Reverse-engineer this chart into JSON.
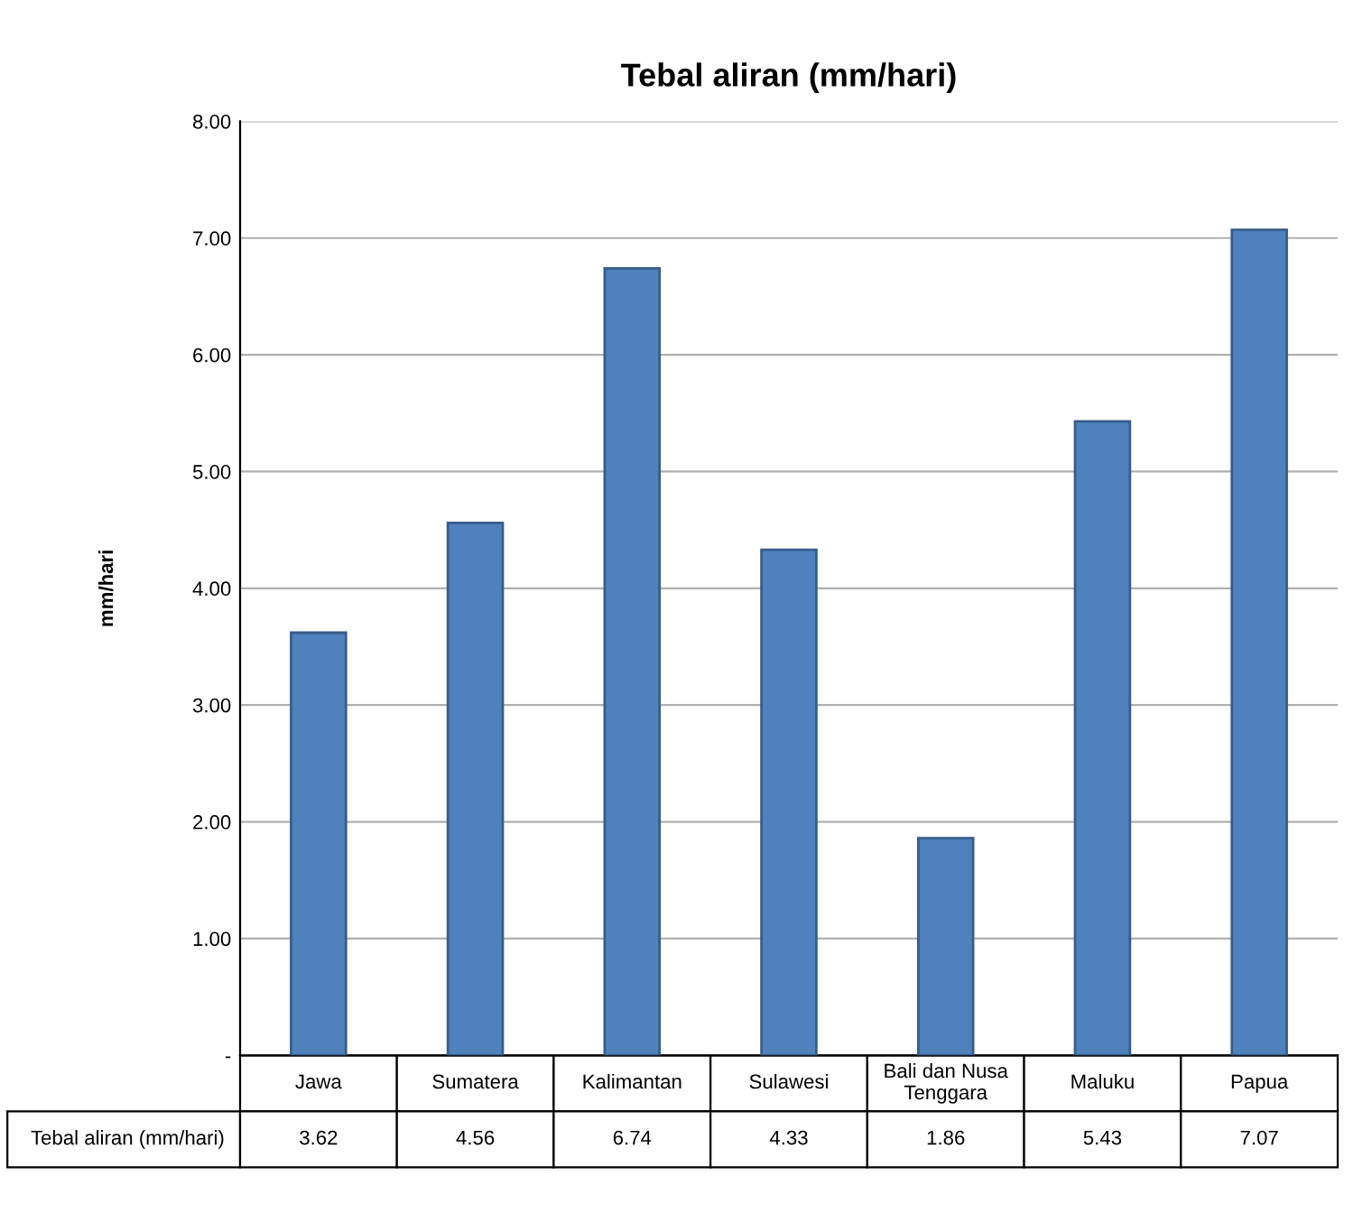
{
  "chart_data": {
    "type": "bar",
    "title": "Tebal aliran (mm/hari)",
    "ylabel": "mm/hari",
    "categories": [
      "Jawa",
      "Sumatera",
      "Kalimantan",
      "Sulawesi",
      "Bali dan Nusa\nTenggara",
      "Maluku",
      "Papua"
    ],
    "series": [
      {
        "name": "Tebal aliran (mm/hari)",
        "color": "#4f81bd",
        "values": [
          3.62,
          4.56,
          6.74,
          4.33,
          1.86,
          5.43,
          7.07
        ]
      }
    ],
    "ylim": [
      0,
      8
    ],
    "yticks": [
      {
        "value": 0,
        "label": "-"
      },
      {
        "value": 1,
        "label": "1.00"
      },
      {
        "value": 2,
        "label": "2.00"
      },
      {
        "value": 3,
        "label": "3.00"
      },
      {
        "value": 4,
        "label": "4.00"
      },
      {
        "value": 5,
        "label": "5.00"
      },
      {
        "value": 6,
        "label": "6.00"
      },
      {
        "value": 7,
        "label": "7.00"
      },
      {
        "value": 8,
        "label": "8.00"
      }
    ],
    "grid": "y",
    "data_labels": true
  }
}
